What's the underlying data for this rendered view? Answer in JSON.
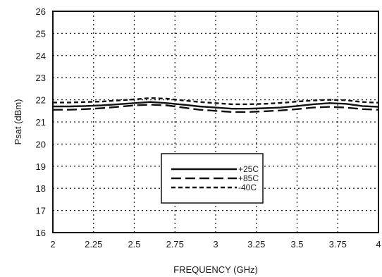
{
  "chart_data": {
    "type": "line",
    "title": "",
    "xlabel": "FREQUENCY (GHz)",
    "ylabel": "Psat (dBm)",
    "xlim": [
      2,
      4
    ],
    "ylim": [
      16,
      26
    ],
    "x_ticks": [
      "2",
      "2.25",
      "2.5",
      "2.75",
      "3",
      "3.25",
      "3.5",
      "3.75",
      "4"
    ],
    "y_ticks": [
      "16",
      "17",
      "18",
      "19",
      "20",
      "21",
      "22",
      "23",
      "24",
      "25",
      "26"
    ],
    "grid": true,
    "legend_position": "center-bottom",
    "series": [
      {
        "name": "+25C",
        "style": "solid",
        "x": [
          2.0,
          2.1,
          2.2,
          2.3,
          2.4,
          2.5,
          2.6,
          2.7,
          2.8,
          2.9,
          3.0,
          3.1,
          3.2,
          3.3,
          3.4,
          3.5,
          3.6,
          3.7,
          3.8,
          3.9,
          4.0
        ],
        "y": [
          21.7,
          21.7,
          21.72,
          21.75,
          21.8,
          21.85,
          21.9,
          21.85,
          21.78,
          21.7,
          21.65,
          21.6,
          21.6,
          21.62,
          21.65,
          21.72,
          21.8,
          21.85,
          21.82,
          21.72,
          21.68
        ]
      },
      {
        "name": "+85C",
        "style": "dashed",
        "x": [
          2.0,
          2.1,
          2.2,
          2.3,
          2.4,
          2.5,
          2.6,
          2.7,
          2.8,
          2.9,
          3.0,
          3.1,
          3.2,
          3.3,
          3.4,
          3.5,
          3.6,
          3.7,
          3.8,
          3.9,
          4.0
        ],
        "y": [
          21.55,
          21.55,
          21.58,
          21.62,
          21.68,
          21.75,
          21.78,
          21.75,
          21.65,
          21.55,
          21.5,
          21.45,
          21.45,
          21.48,
          21.52,
          21.58,
          21.65,
          21.68,
          21.65,
          21.58,
          21.55
        ]
      },
      {
        "name": "-40C",
        "style": "short-dashed",
        "x": [
          2.0,
          2.1,
          2.2,
          2.3,
          2.4,
          2.5,
          2.6,
          2.7,
          2.8,
          2.9,
          3.0,
          3.1,
          3.2,
          3.3,
          3.4,
          3.5,
          3.6,
          3.7,
          3.8,
          3.9,
          4.0
        ],
        "y": [
          21.88,
          21.88,
          21.9,
          21.92,
          21.97,
          22.02,
          22.08,
          22.05,
          21.97,
          21.9,
          21.85,
          21.8,
          21.8,
          21.82,
          21.86,
          21.92,
          21.97,
          22.0,
          21.98,
          21.9,
          21.87
        ]
      }
    ]
  }
}
